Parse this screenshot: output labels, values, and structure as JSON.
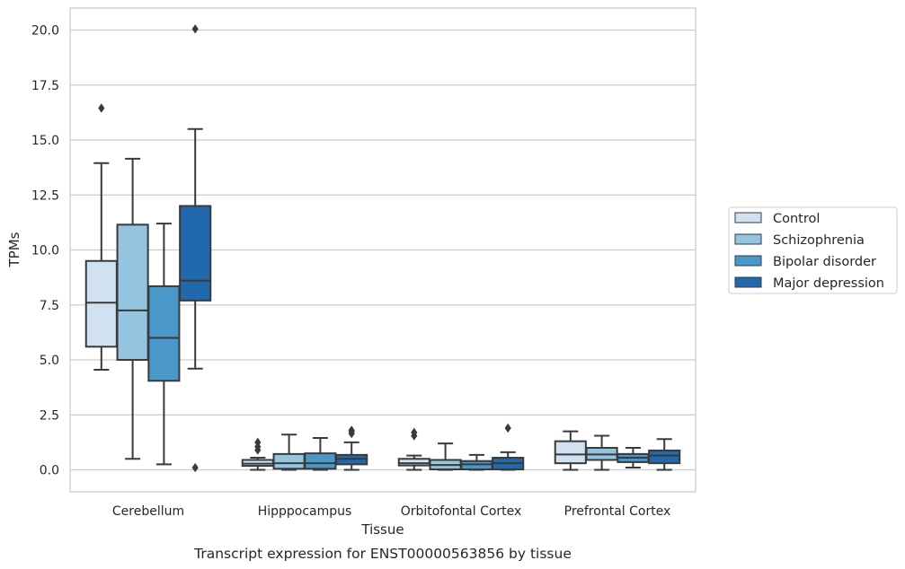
{
  "chart_data": {
    "type": "box",
    "xlabel": "Tissue",
    "ylabel": "TPMs",
    "caption": "Transcript expression for ENST00000563856 by tissue",
    "ylim": [
      -1.0,
      21.0
    ],
    "yticks": [
      0.0,
      2.5,
      5.0,
      7.5,
      10.0,
      12.5,
      15.0,
      17.5,
      20.0
    ],
    "ytick_labels": [
      "0.0",
      "2.5",
      "5.0",
      "7.5",
      "10.0",
      "12.5",
      "15.0",
      "17.5",
      "20.0"
    ],
    "grid": "horizontal",
    "legend_position": "right",
    "categories": [
      "Cerebellum",
      "Hipppocampus",
      "Orbitofontal Cortex",
      "Prefrontal Cortex"
    ],
    "series": [
      {
        "name": "Control",
        "color": "#d0e1f2",
        "boxes": [
          {
            "whisker_low": 4.55,
            "q1": 5.6,
            "median": 7.6,
            "q3": 9.5,
            "whisker_high": 13.95,
            "outliers": [
              16.45
            ]
          },
          {
            "whisker_low": 0.0,
            "q1": 0.18,
            "median": 0.28,
            "q3": 0.45,
            "whisker_high": 0.55,
            "outliers": [
              0.9,
              1.05,
              1.25
            ]
          },
          {
            "whisker_low": 0.0,
            "q1": 0.2,
            "median": 0.3,
            "q3": 0.5,
            "whisker_high": 0.65,
            "outliers": [
              1.55,
              1.7
            ]
          },
          {
            "whisker_low": 0.0,
            "q1": 0.3,
            "median": 0.7,
            "q3": 1.3,
            "whisker_high": 1.75,
            "outliers": []
          }
        ]
      },
      {
        "name": "Schizophrenia",
        "color": "#94c4df",
        "boxes": [
          {
            "whisker_low": 0.5,
            "q1": 5.0,
            "median": 7.25,
            "q3": 11.15,
            "whisker_high": 14.15,
            "outliers": []
          },
          {
            "whisker_low": 0.0,
            "q1": 0.05,
            "median": 0.3,
            "q3": 0.72,
            "whisker_high": 1.6,
            "outliers": []
          },
          {
            "whisker_low": 0.0,
            "q1": 0.02,
            "median": 0.22,
            "q3": 0.45,
            "whisker_high": 1.2,
            "outliers": []
          },
          {
            "whisker_low": 0.0,
            "q1": 0.45,
            "median": 0.7,
            "q3": 1.0,
            "whisker_high": 1.55,
            "outliers": []
          }
        ]
      },
      {
        "name": "Bipolar disorder",
        "color": "#4a98c9",
        "boxes": [
          {
            "whisker_low": 0.25,
            "q1": 4.05,
            "median": 6.0,
            "q3": 8.35,
            "whisker_high": 11.2,
            "outliers": []
          },
          {
            "whisker_low": 0.0,
            "q1": 0.05,
            "median": 0.3,
            "q3": 0.75,
            "whisker_high": 1.45,
            "outliers": []
          },
          {
            "whisker_low": 0.0,
            "q1": 0.02,
            "median": 0.25,
            "q3": 0.4,
            "whisker_high": 0.68,
            "outliers": []
          },
          {
            "whisker_low": 0.1,
            "q1": 0.35,
            "median": 0.55,
            "q3": 0.72,
            "whisker_high": 1.0,
            "outliers": []
          }
        ]
      },
      {
        "name": "Major depression",
        "color": "#2268ad",
        "boxes": [
          {
            "whisker_low": 4.6,
            "q1": 7.7,
            "median": 8.6,
            "q3": 12.0,
            "whisker_high": 15.5,
            "outliers": [
              20.05,
              0.1
            ]
          },
          {
            "whisker_low": 0.0,
            "q1": 0.25,
            "median": 0.5,
            "q3": 0.68,
            "whisker_high": 1.25,
            "outliers": [
              1.65,
              1.75,
              1.8
            ]
          },
          {
            "whisker_low": 0.0,
            "q1": 0.02,
            "median": 0.3,
            "q3": 0.55,
            "whisker_high": 0.8,
            "outliers": [
              1.9
            ]
          },
          {
            "whisker_low": 0.0,
            "q1": 0.3,
            "median": 0.65,
            "q3": 0.88,
            "whisker_high": 1.4,
            "outliers": []
          }
        ]
      }
    ]
  }
}
